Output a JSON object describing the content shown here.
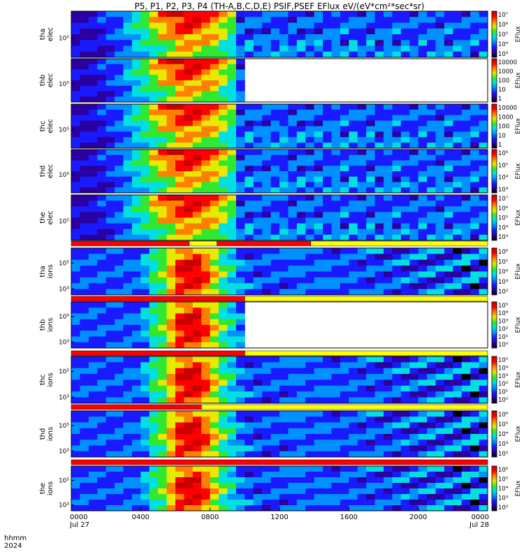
{
  "chart_data": {
    "type": "heatmap",
    "title": "P5, P1, P2, P3, P4 (TH-A,B,C,D,E) PSIF,PSEF EFlux eV/(eV*cm²*sec*sr)",
    "x_axis": {
      "label_lines": [
        "hhmm",
        "2024"
      ],
      "ticks": [
        "0000",
        "0400",
        "0800",
        "1200",
        "1600",
        "2000",
        "0000"
      ],
      "tick_dates": [
        "Jul 27",
        "",
        "",
        "",
        "",
        "",
        "Jul 28"
      ],
      "range_hours": [
        0,
        24
      ]
    },
    "colorbar_label": "EFlux",
    "panels": [
      {
        "id": "tha-elec",
        "ylabel": [
          "tha",
          "elec"
        ],
        "yticks": [
          "10⁵"
        ],
        "data_end_hour": 24,
        "colorbar_ticks": [
          "10⁷",
          "10⁶",
          "10⁵",
          "10⁴",
          "10³"
        ],
        "bar_below": null
      },
      {
        "id": "thb-elec",
        "ylabel": [
          "thb",
          "elec"
        ],
        "yticks": [
          "10⁵"
        ],
        "data_end_hour": 10,
        "colorbar_ticks": [
          "10000",
          "1000",
          "100",
          "10",
          "1"
        ],
        "bar_below": null
      },
      {
        "id": "thc-elec",
        "ylabel": [
          "thc",
          "elec"
        ],
        "yticks": [
          "10⁵"
        ],
        "data_end_hour": 24,
        "colorbar_ticks": [
          "10000",
          "1000",
          "100",
          "10",
          "1"
        ],
        "bar_below": null
      },
      {
        "id": "thd-elec",
        "ylabel": [
          "thd",
          "elec"
        ],
        "yticks": [
          "10⁵"
        ],
        "data_end_hour": 24,
        "colorbar_ticks": [
          "10⁶",
          "10⁵",
          "10⁴",
          "10³"
        ],
        "bar_below": null
      },
      {
        "id": "the-elec",
        "ylabel": [
          "the",
          "elec"
        ],
        "yticks": [
          "10⁵"
        ],
        "data_end_hour": 24,
        "colorbar_ticks": [
          "10⁷",
          "10⁶",
          "10⁵",
          "10⁴",
          "10³"
        ],
        "bar_below": "the"
      },
      {
        "id": "tha-ions",
        "ylabel": [
          "tha",
          "ions"
        ],
        "yticks": [
          "10⁵",
          "10³"
        ],
        "data_end_hour": 24,
        "colorbar_ticks": [
          "10⁶",
          "10⁵",
          "10⁴",
          "10³",
          "10²"
        ],
        "bar_below": "tha"
      },
      {
        "id": "thb-ions",
        "ylabel": [
          "thb",
          "ions"
        ],
        "yticks": [
          "10⁵",
          "10³"
        ],
        "data_end_hour": 10,
        "colorbar_ticks": [
          "10⁵",
          "10⁴",
          "10³",
          "10²",
          "10¹",
          "10⁰"
        ],
        "bar_below": "thb"
      },
      {
        "id": "thc-ions",
        "ylabel": [
          "thc",
          "ions"
        ],
        "yticks": [
          "10⁵",
          "10³"
        ],
        "data_end_hour": 24,
        "colorbar_ticks": [
          "10⁵",
          "10⁴",
          "10³",
          "10²",
          "10¹",
          "10⁰"
        ],
        "bar_below": "thc"
      },
      {
        "id": "thd-ions",
        "ylabel": [
          "thd",
          "ions"
        ],
        "yticks": [
          "10⁵",
          "10³"
        ],
        "data_end_hour": 24,
        "colorbar_ticks": [
          "10⁶",
          "10⁵",
          "10⁴",
          "10³",
          "10²"
        ],
        "bar_below": "thd"
      },
      {
        "id": "the-ions",
        "ylabel": [
          "the",
          "ions"
        ],
        "yticks": [
          "10⁵",
          "10³"
        ],
        "data_end_hour": 24,
        "colorbar_ticks": [
          "10⁶",
          "10⁵",
          "10⁴",
          "10³",
          "10²"
        ],
        "bar_below": null
      }
    ],
    "status_bars": [
      {
        "probe": "the",
        "segments": [
          {
            "from": 0,
            "to": 6.8,
            "color": "red"
          },
          {
            "from": 6.8,
            "to": 8.4,
            "color": "yellow"
          },
          {
            "from": 8.4,
            "to": 13.8,
            "color": "red"
          },
          {
            "from": 13.8,
            "to": 24,
            "color": "yellow"
          }
        ]
      },
      {
        "probe": "tha",
        "segments": [
          {
            "from": 0,
            "to": 10,
            "color": "red"
          },
          {
            "from": 10,
            "to": 24,
            "color": "yellow"
          }
        ]
      },
      {
        "probe": "thb",
        "segments": [
          {
            "from": 0,
            "to": 10,
            "color": "red"
          },
          {
            "from": 10,
            "to": 24,
            "color": "yellow"
          }
        ]
      },
      {
        "probe": "thc",
        "segments": [
          {
            "from": 0,
            "to": 7.5,
            "color": "red"
          },
          {
            "from": 7.5,
            "to": 24,
            "color": "yellow"
          }
        ]
      },
      {
        "probe": "thd",
        "segments": [
          {
            "from": 0,
            "to": 24,
            "color": "red"
          }
        ]
      }
    ]
  },
  "colors": {
    "red": "#ff0000",
    "yellow": "#ffff00",
    "colormap": [
      "#000000",
      "#2a00a0",
      "#1a1aff",
      "#0090ff",
      "#00e0e0",
      "#30e830",
      "#e8e800",
      "#ff8000",
      "#ff0000",
      "#c80000"
    ]
  }
}
